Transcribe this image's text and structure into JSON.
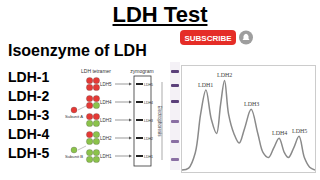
{
  "header": {
    "title": "LDH Test",
    "subscribe": "SUBSCRIBE"
  },
  "subtitle": "Isoenzyme of LDH",
  "list": [
    "LDH-1",
    "LDH-2",
    "LDH-3",
    "LDH-4",
    "LDH-5"
  ],
  "diagram": {
    "tetramer_title": "LDH tetramer",
    "zymogram_title": "zymogram",
    "direction_label": "Electrophoresis",
    "subunits": [
      {
        "label": "Subunit A",
        "color": "#e53935"
      },
      {
        "label": "Subunit B",
        "color": "#8bc34a"
      }
    ],
    "rows": [
      {
        "label": "LDH5",
        "a": 4,
        "b": 0
      },
      {
        "label": "LDH4",
        "a": 3,
        "b": 1
      },
      {
        "label": "LDH3",
        "a": 2,
        "b": 2
      },
      {
        "label": "LDH2",
        "a": 1,
        "b": 3
      },
      {
        "label": "LDH1",
        "a": 0,
        "b": 4
      }
    ]
  },
  "chart_data": {
    "type": "line",
    "color": "#8a8a8a",
    "grid": false,
    "tick_labels": false,
    "x": [
      0,
      5,
      10,
      14,
      18,
      22,
      26,
      29,
      32,
      35,
      39,
      43,
      47,
      52,
      57,
      61,
      65,
      69,
      73,
      77,
      80,
      84,
      88,
      92,
      96,
      100
    ],
    "values": [
      2,
      4,
      20,
      60,
      85,
      55,
      40,
      70,
      95,
      60,
      40,
      30,
      45,
      65,
      40,
      20,
      15,
      25,
      35,
      20,
      15,
      25,
      37,
      15,
      5,
      2
    ],
    "xlim": [
      0,
      100
    ],
    "ylim": [
      0,
      110
    ],
    "annotations": [
      {
        "text": "LDH1",
        "x": 18,
        "y": 85
      },
      {
        "text": "LDH2",
        "x": 32,
        "y": 95
      },
      {
        "text": "LDH3",
        "x": 52,
        "y": 65
      },
      {
        "text": "LDH4",
        "x": 73,
        "y": 35
      },
      {
        "text": "LDH5",
        "x": 88,
        "y": 37
      }
    ]
  }
}
